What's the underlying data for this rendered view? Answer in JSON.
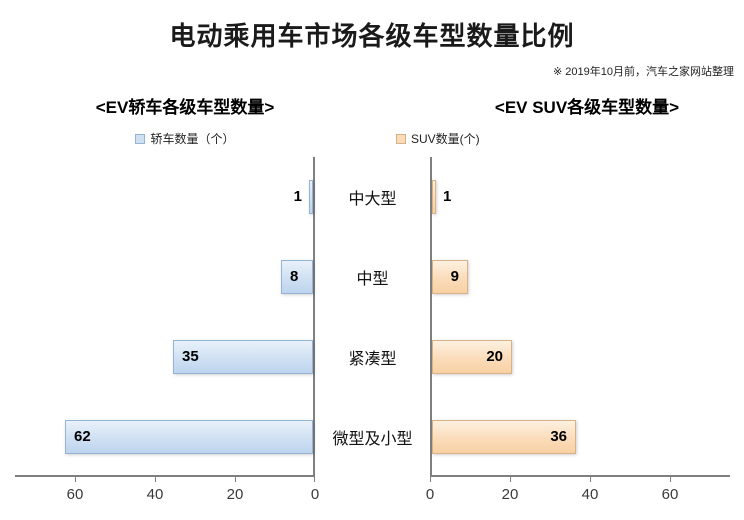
{
  "title": "电动乘用车市场各级车型数量比例",
  "note": "※ 2019年10月前，汽车之家网站整理",
  "left_chart": {
    "subtitle": "<EV轿车各级车型数量>",
    "legend": "轿车数量（个）"
  },
  "right_chart": {
    "subtitle": "<EV SUV各级车型数量>",
    "legend": "SUV数量(个)"
  },
  "colors": {
    "sedan_fill": "#cfe0f3",
    "sedan_border": "#95b3d7",
    "suv_fill": "#fbdcba",
    "suv_border": "#d8b184",
    "axis": "#7f7f7f"
  },
  "chart_data": {
    "type": "bar",
    "orientation": "horizontal-tornado",
    "title": "电动乘用车市场各级车型数量比例",
    "categories": [
      "中大型",
      "中型",
      "紧凑型",
      "微型及小型"
    ],
    "series": [
      {
        "name": "轿车数量（个）",
        "side": "left",
        "values": [
          1,
          8,
          35,
          62
        ]
      },
      {
        "name": "SUV数量(个)",
        "side": "right",
        "values": [
          1,
          9,
          20,
          36
        ]
      }
    ],
    "x_ticks_left": [
      60,
      40,
      20,
      0
    ],
    "x_ticks_right": [
      0,
      20,
      40,
      60
    ],
    "xlim": [
      0,
      75
    ],
    "grid": false,
    "legend_position": "top"
  }
}
